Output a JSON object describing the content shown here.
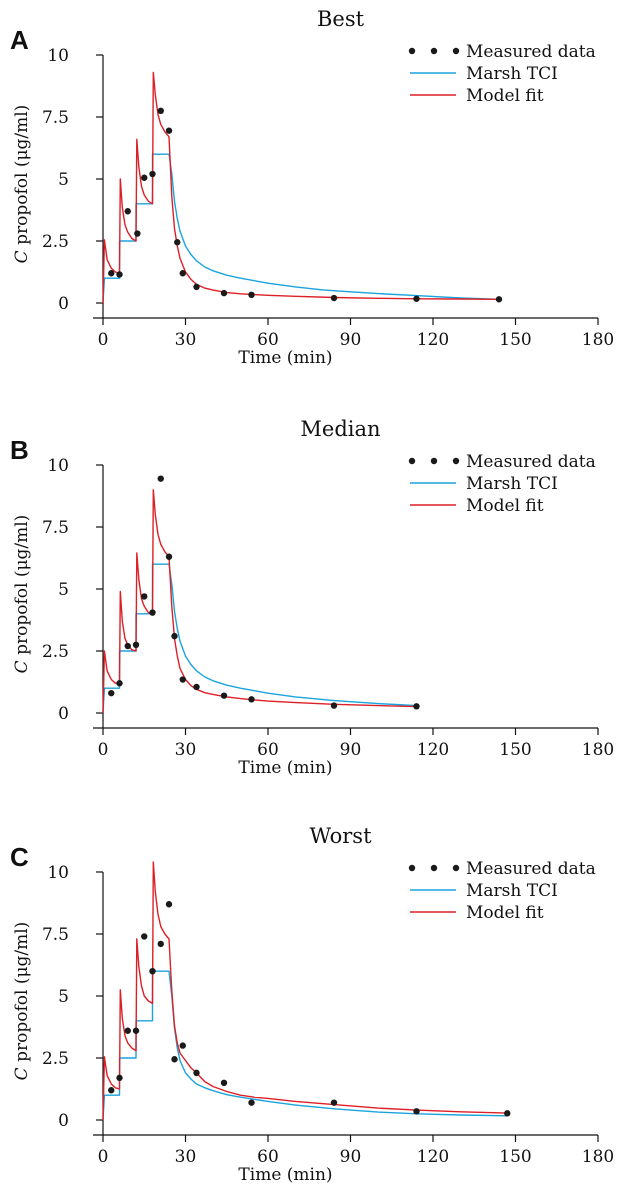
{
  "figure": {
    "xlabel": "Time (min)",
    "ylabel_var": "C",
    "ylabel_rest": " propofol (μg/ml)",
    "x_ticks": [
      "0",
      "30",
      "60",
      "90",
      "120",
      "150",
      "180"
    ],
    "y_ticks": [
      "0",
      "2.5",
      "5",
      "7.5",
      "10"
    ],
    "legend": {
      "measured": "Measured data",
      "marsh": "Marsh TCI",
      "model": "Model fit"
    },
    "colors": {
      "measured": "#1a1a1a",
      "marsh": "#1aa3dd",
      "model": "#dd1f26"
    }
  },
  "chart_data": [
    {
      "panel_letter": "A",
      "title": "Best",
      "type": "line",
      "xlabel": "Time (min)",
      "ylabel": "C propofol (μg/ml)",
      "xlim": [
        0,
        180
      ],
      "ylim": [
        0,
        10
      ],
      "legend_position": "top-right",
      "series": [
        {
          "name": "Measured data",
          "kind": "scatter",
          "x": [
            3,
            6,
            9,
            12.5,
            15,
            18,
            21,
            24,
            27,
            29,
            34,
            44,
            54,
            84,
            114,
            144
          ],
          "y": [
            1.2,
            1.15,
            3.7,
            2.8,
            5.05,
            5.2,
            7.75,
            6.95,
            2.45,
            1.2,
            0.65,
            0.4,
            0.33,
            0.2,
            0.17,
            0.15
          ]
        },
        {
          "name": "Marsh TCI",
          "kind": "line",
          "x": [
            0,
            0.5,
            6,
            6,
            12,
            12,
            18,
            18,
            24,
            25,
            26,
            27,
            28,
            30,
            32,
            34,
            37,
            40,
            45,
            50,
            60,
            70,
            80,
            90,
            100,
            114,
            130,
            144
          ],
          "y": [
            0,
            1,
            1,
            2.5,
            2.5,
            4,
            4,
            6,
            6,
            5.2,
            4.1,
            3.4,
            2.9,
            2.3,
            1.95,
            1.7,
            1.45,
            1.3,
            1.12,
            1.0,
            0.8,
            0.65,
            0.53,
            0.45,
            0.38,
            0.3,
            0.2,
            0.15
          ]
        },
        {
          "name": "Model fit",
          "kind": "line",
          "x": [
            0,
            0.5,
            1.5,
            3,
            4.5,
            6,
            6.3,
            7,
            8,
            9,
            10.5,
            12,
            12.3,
            13,
            14,
            15,
            16.5,
            18,
            18.3,
            19,
            20,
            21,
            22.5,
            24,
            25,
            26,
            27,
            28,
            30,
            32,
            34,
            37,
            40,
            45,
            50,
            55,
            60,
            70,
            84,
            100,
            114,
            130,
            144
          ],
          "y": [
            0,
            2.55,
            1.75,
            1.4,
            1.25,
            1.2,
            5.0,
            3.85,
            3.15,
            2.85,
            2.6,
            2.5,
            6.6,
            5.5,
            4.7,
            4.35,
            4.1,
            4.0,
            9.3,
            8.4,
            7.6,
            7.2,
            6.9,
            6.7,
            4.3,
            3.0,
            2.3,
            1.8,
            1.25,
            0.95,
            0.75,
            0.6,
            0.52,
            0.42,
            0.37,
            0.34,
            0.31,
            0.27,
            0.22,
            0.19,
            0.17,
            0.16,
            0.15
          ]
        }
      ]
    },
    {
      "panel_letter": "B",
      "title": "Median",
      "type": "line",
      "xlabel": "Time (min)",
      "ylabel": "C propofol (μg/ml)",
      "xlim": [
        0,
        180
      ],
      "ylim": [
        0,
        10
      ],
      "legend_position": "top-right",
      "series": [
        {
          "name": "Measured data",
          "kind": "scatter",
          "x": [
            3,
            6,
            9,
            12,
            15,
            18,
            21,
            24,
            26,
            29,
            34,
            44,
            54,
            84,
            114
          ],
          "y": [
            0.8,
            1.2,
            2.7,
            2.75,
            4.7,
            4.05,
            9.45,
            6.3,
            3.1,
            1.35,
            1.05,
            0.7,
            0.55,
            0.3,
            0.27
          ]
        },
        {
          "name": "Marsh TCI",
          "kind": "line",
          "x": [
            0,
            0.5,
            6,
            6,
            12,
            12,
            18,
            18,
            24,
            25,
            26,
            27,
            28,
            30,
            32,
            34,
            37,
            40,
            45,
            50,
            60,
            70,
            84,
            100,
            114
          ],
          "y": [
            0,
            1,
            1,
            2.5,
            2.5,
            4,
            4,
            6,
            6,
            5.2,
            4.1,
            3.4,
            2.9,
            2.3,
            1.95,
            1.7,
            1.45,
            1.3,
            1.12,
            1.0,
            0.8,
            0.65,
            0.5,
            0.38,
            0.3
          ]
        },
        {
          "name": "Model fit",
          "kind": "line",
          "x": [
            0,
            0.5,
            1.5,
            3,
            4.5,
            6,
            6.3,
            7,
            8,
            9,
            10.5,
            12,
            12.3,
            13,
            14,
            15,
            16.5,
            18,
            18.3,
            19,
            20,
            21,
            22.5,
            24,
            25,
            26,
            27,
            28,
            30,
            32,
            34,
            37,
            40,
            45,
            50,
            55,
            60,
            70,
            84,
            100,
            114
          ],
          "y": [
            0,
            2.5,
            1.7,
            1.35,
            1.2,
            1.15,
            4.9,
            3.7,
            3.0,
            2.75,
            2.55,
            2.5,
            6.45,
            5.4,
            4.6,
            4.3,
            4.05,
            3.95,
            9.0,
            8.0,
            7.2,
            6.8,
            6.5,
            6.3,
            4.3,
            3.0,
            2.3,
            1.8,
            1.35,
            1.1,
            0.95,
            0.82,
            0.75,
            0.65,
            0.58,
            0.53,
            0.48,
            0.42,
            0.35,
            0.3,
            0.26
          ]
        }
      ]
    },
    {
      "panel_letter": "C",
      "title": "Worst",
      "type": "line",
      "xlabel": "Time (min)",
      "ylabel": "C propofol (μg/ml)",
      "xlim": [
        0,
        180
      ],
      "ylim": [
        0,
        10
      ],
      "legend_position": "top-right",
      "series": [
        {
          "name": "Measured data",
          "kind": "scatter",
          "x": [
            3,
            6,
            9,
            12,
            15,
            18,
            21,
            24,
            26,
            29,
            34,
            44,
            54,
            84,
            114,
            147
          ],
          "y": [
            1.2,
            1.7,
            3.6,
            3.6,
            7.4,
            6.0,
            7.1,
            8.7,
            2.45,
            3.0,
            1.9,
            1.5,
            0.7,
            0.7,
            0.35,
            0.27
          ]
        },
        {
          "name": "Marsh TCI",
          "kind": "line",
          "x": [
            0,
            0.5,
            6,
            6,
            12,
            12,
            18,
            18,
            24,
            25,
            26,
            27,
            28,
            30,
            32,
            34,
            37,
            40,
            45,
            50,
            60,
            70,
            84,
            100,
            114,
            130,
            147
          ],
          "y": [
            0,
            1,
            1,
            2.5,
            2.5,
            4,
            4,
            6,
            6,
            5.0,
            3.7,
            2.9,
            2.4,
            1.9,
            1.65,
            1.45,
            1.3,
            1.18,
            1.02,
            0.92,
            0.75,
            0.6,
            0.45,
            0.32,
            0.25,
            0.2,
            0.17
          ]
        },
        {
          "name": "Model fit",
          "kind": "line",
          "x": [
            0,
            0.5,
            1.5,
            3,
            4.5,
            6,
            6.3,
            7,
            8,
            9,
            10.5,
            12,
            12.3,
            13,
            14,
            15,
            16.5,
            18,
            18.3,
            19,
            20,
            21,
            22.5,
            24,
            25,
            26,
            27,
            28,
            30,
            32,
            34,
            37,
            40,
            45,
            50,
            55,
            60,
            70,
            84,
            100,
            114,
            130,
            147
          ],
          "y": [
            0,
            2.55,
            1.8,
            1.45,
            1.3,
            1.25,
            5.25,
            4.1,
            3.4,
            3.1,
            2.9,
            2.8,
            7.3,
            6.2,
            5.4,
            5.0,
            4.8,
            4.7,
            10.4,
            9.2,
            8.3,
            7.8,
            7.5,
            7.3,
            5.2,
            3.8,
            3.1,
            2.7,
            2.4,
            2.1,
            1.9,
            1.55,
            1.35,
            1.15,
            1.0,
            0.92,
            0.87,
            0.75,
            0.62,
            0.48,
            0.4,
            0.33,
            0.28
          ]
        }
      ]
    }
  ]
}
